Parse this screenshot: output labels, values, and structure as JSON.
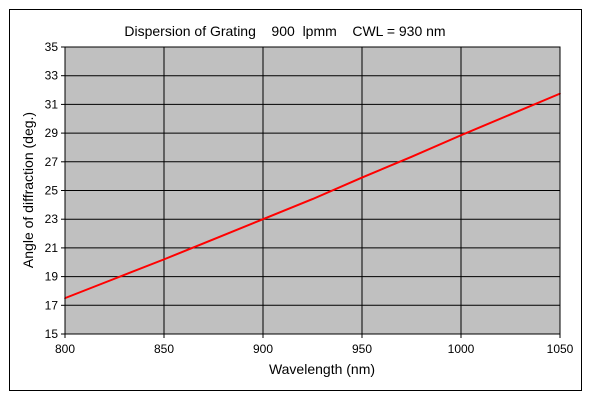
{
  "chart_data": {
    "type": "line",
    "title": "Dispersion of Grating    900  lpmm    CWL = 930 nm",
    "xlabel": "Wavelength  (nm)",
    "ylabel": "Angle of diffraction (deg.)",
    "xlim": [
      800,
      1050
    ],
    "ylim": [
      15,
      35
    ],
    "x_ticks": [
      800,
      850,
      900,
      950,
      1000,
      1050
    ],
    "y_ticks": [
      15,
      17,
      19,
      21,
      23,
      25,
      27,
      29,
      31,
      33,
      35
    ],
    "grid": true,
    "legend": "none",
    "series": [
      {
        "x": [
          800,
          825,
          850,
          875,
          900,
          925,
          950,
          975,
          1000,
          1025,
          1050
        ],
        "y": [
          17.5,
          18.85,
          20.2,
          21.6,
          23.0,
          24.4,
          25.9,
          27.35,
          28.85,
          30.3,
          31.75
        ],
        "color": "#ff0000"
      }
    ],
    "plot_background": "#c0c0c0",
    "grid_color": "#000000"
  }
}
